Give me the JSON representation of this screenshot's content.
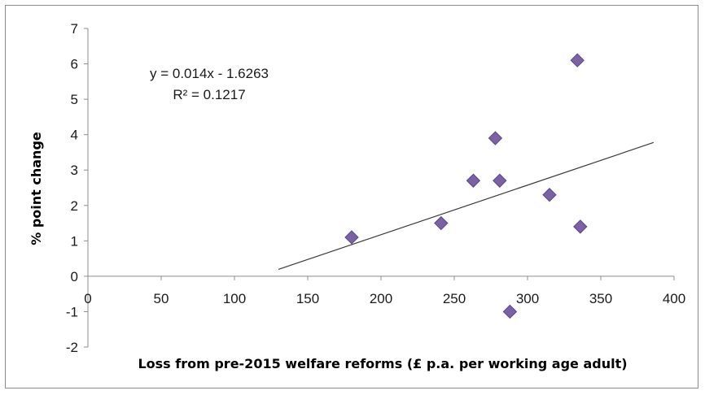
{
  "chart_data": {
    "type": "scatter",
    "xlabel": "Loss from pre-2015 welfare reforms (£ p.a. per working age adult)",
    "ylabel": "% point change",
    "xlim": [
      0,
      400
    ],
    "ylim": [
      -2,
      7
    ],
    "xticks": [
      0,
      50,
      100,
      150,
      200,
      250,
      300,
      350,
      400
    ],
    "yticks": [
      -2,
      -1,
      0,
      1,
      2,
      3,
      4,
      5,
      6,
      7
    ],
    "grid": false,
    "legend": "none",
    "series": [
      {
        "marker": "diamond",
        "color": "#7b62a6",
        "points": [
          {
            "x": 180,
            "y": 1.1
          },
          {
            "x": 241,
            "y": 1.5
          },
          {
            "x": 263,
            "y": 2.7
          },
          {
            "x": 278,
            "y": 3.9
          },
          {
            "x": 281,
            "y": 2.7
          },
          {
            "x": 315,
            "y": 2.3
          },
          {
            "x": 334,
            "y": 6.1
          },
          {
            "x": 336,
            "y": 1.4
          },
          {
            "x": 288,
            "y": -1.0
          }
        ]
      }
    ],
    "trendline": {
      "slope": 0.014,
      "intercept": -1.6263,
      "x_range": [
        130,
        386
      ],
      "equation_label": "y = 0.014x - 1.6263",
      "r2_label": "R² = 0.1217"
    }
  }
}
